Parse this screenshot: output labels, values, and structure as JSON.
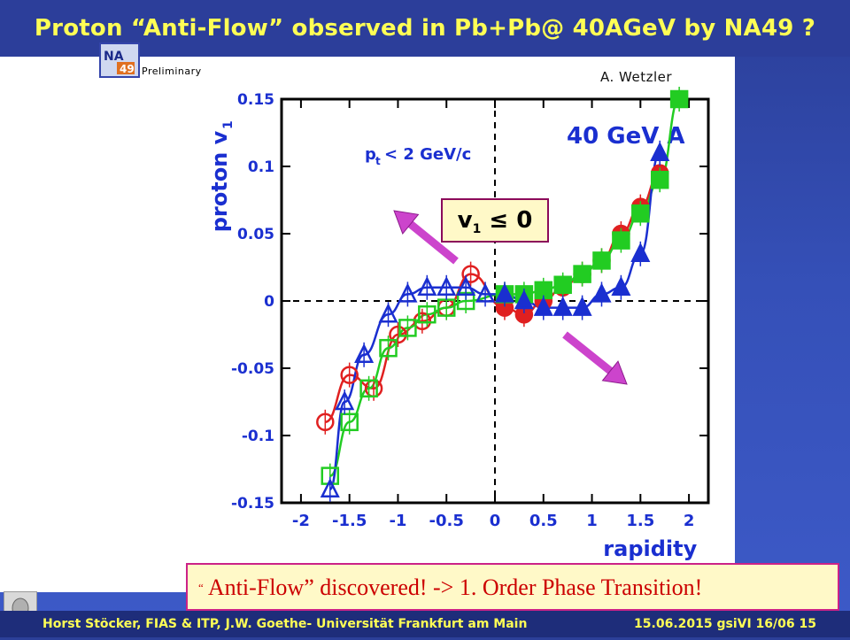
{
  "slide": {
    "title": "Proton “Anti-Flow” observed in Pb+Pb@ 40AGeV by NA49 ?",
    "logo_text": "NA49",
    "preliminary": "Preliminary",
    "author": "A. Wetzler",
    "v1_label": "v",
    "v1_sub": "1",
    "v1_rel": "≤ 0",
    "banner_quote": "“",
    "banner_text": "Anti-Flow” discovered! -> 1. Order Phase Transition!",
    "footer_left": "Horst Stöcker, FIAS & ITP, J.W. Goethe- Universität Frankfurt am Main",
    "footer_right": "15.06.2015   gsiVI 16/06  15",
    "colors": {
      "title": "#ffff55",
      "background": "#3550b8",
      "banner_text": "#cc0000",
      "arrow": "#cc44cc",
      "series_red": "#e02020",
      "series_green": "#22cc22",
      "series_blue": "#1a2fd0"
    }
  },
  "chart_data": {
    "type": "scatter",
    "xlabel": "rapidity",
    "ylabel": "proton v",
    "ylabel_sub": "1",
    "xlim": [
      -2.2,
      2.2
    ],
    "ylim": [
      -0.15,
      0.15
    ],
    "xticks": [
      "-2",
      "-1.5",
      "-1",
      "-0.5",
      "0",
      "0.5",
      "1",
      "1.5",
      "2"
    ],
    "yticks": [
      "-0.15",
      "-0.1",
      "-0.05",
      "0",
      "0.05",
      "0.1",
      "0.15"
    ],
    "annotations": [
      "40 GeV A",
      "p",
      "t",
      "< 2 GeV/c"
    ],
    "series": [
      {
        "color": "#e02020",
        "marker": "circle",
        "x_open": [
          -1.75,
          -1.5,
          -1.25,
          -1.0,
          -0.75,
          -0.5,
          -0.25
        ],
        "y_open": [
          -0.09,
          -0.055,
          -0.065,
          -0.025,
          -0.015,
          -0.005,
          0.02
        ],
        "x_filled": [
          0.1,
          0.3,
          0.5,
          0.7,
          0.9,
          1.1,
          1.3,
          1.5,
          1.7
        ],
        "y_filled": [
          -0.005,
          -0.01,
          0.0,
          0.01,
          0.02,
          0.03,
          0.05,
          0.07,
          0.095
        ]
      },
      {
        "color": "#22cc22",
        "marker": "square",
        "x_open": [
          -1.7,
          -1.5,
          -1.3,
          -1.1,
          -0.9,
          -0.7,
          -0.5,
          -0.3
        ],
        "y_open": [
          -0.13,
          -0.09,
          -0.065,
          -0.035,
          -0.02,
          -0.01,
          -0.005,
          0.0
        ],
        "x_filled": [
          0.1,
          0.3,
          0.5,
          0.7,
          0.9,
          1.1,
          1.3,
          1.5,
          1.7,
          1.9
        ],
        "y_filled": [
          0.005,
          0.005,
          0.008,
          0.012,
          0.02,
          0.03,
          0.045,
          0.065,
          0.09,
          0.15
        ]
      },
      {
        "color": "#1a2fd0",
        "marker": "triangle",
        "x_open": [
          -1.7,
          -1.55,
          -1.35,
          -1.1,
          -0.9,
          -0.7,
          -0.5,
          -0.3,
          -0.1
        ],
        "y_open": [
          -0.14,
          -0.075,
          -0.04,
          -0.01,
          0.005,
          0.01,
          0.01,
          0.01,
          0.005
        ],
        "x_filled": [
          0.1,
          0.3,
          0.5,
          0.7,
          0.9,
          1.1,
          1.3,
          1.5,
          1.7
        ],
        "y_filled": [
          0.005,
          0.0,
          -0.005,
          -0.005,
          -0.005,
          0.005,
          0.01,
          0.035,
          0.11
        ]
      }
    ]
  }
}
